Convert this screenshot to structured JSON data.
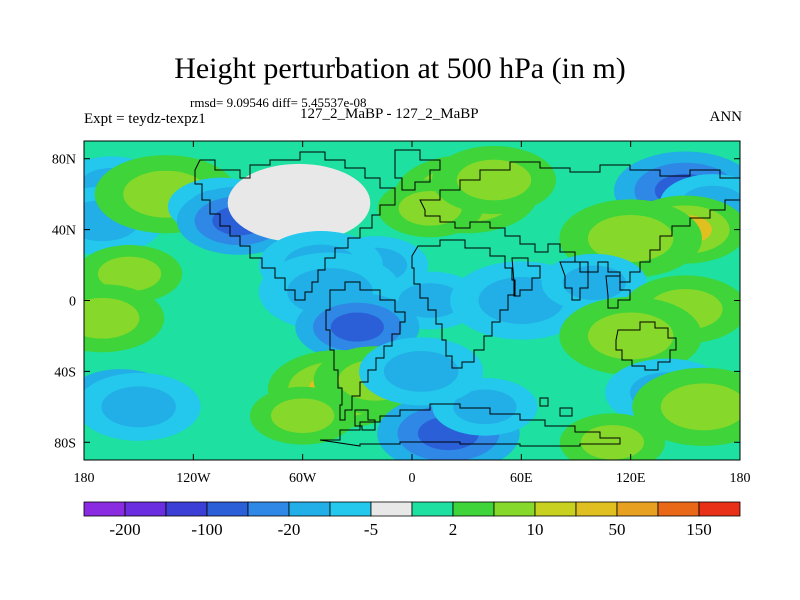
{
  "chart_data": {
    "type": "heatmap",
    "title": "Height perturbation at 500 hPa (in m)",
    "stats_text": "rmsd= 9.09546 diff= 5.45537e-08",
    "left_label": "Expt = teydz-texpz1",
    "center_label": "127_2_MaBP - 127_2_MaBP",
    "right_label": "ANN",
    "x_range": [
      -180,
      180
    ],
    "y_range": [
      -90,
      90
    ],
    "x_ticks": [
      {
        "value": -180,
        "label": "180"
      },
      {
        "value": -120,
        "label": "120W"
      },
      {
        "value": -60,
        "label": "60W"
      },
      {
        "value": 0,
        "label": "0"
      },
      {
        "value": 60,
        "label": "60E"
      },
      {
        "value": 120,
        "label": "120E"
      },
      {
        "value": 180,
        "label": "180"
      }
    ],
    "y_ticks": [
      {
        "value": 80,
        "label": "80N"
      },
      {
        "value": 40,
        "label": "40N"
      },
      {
        "value": 0,
        "label": "0"
      },
      {
        "value": -40,
        "label": "40S"
      },
      {
        "value": -80,
        "label": "80S"
      }
    ],
    "colorbar": {
      "colors": [
        "#8a2be2",
        "#6a2de0",
        "#3c3fd6",
        "#2b5fd8",
        "#2f87e6",
        "#22aee6",
        "#23c8ec",
        "#e8e8e8",
        "#1ee0a0",
        "#3ed43a",
        "#86d82a",
        "#c8d020",
        "#e0c020",
        "#e8a020",
        "#e86818",
        "#e83018"
      ],
      "labels": [
        {
          "boundary": 1,
          "text": "-200"
        },
        {
          "boundary": 3,
          "text": "-100"
        },
        {
          "boundary": 5,
          "text": "-20"
        },
        {
          "boundary": 7,
          "text": "-5"
        },
        {
          "boundary": 9,
          "text": "2"
        },
        {
          "boundary": 11,
          "text": "10"
        },
        {
          "boundary": 13,
          "text": "50"
        },
        {
          "boundary": 15,
          "text": "150"
        }
      ]
    },
    "anomaly_centers": [
      {
        "lon": -165,
        "lat": 65,
        "level": -1
      },
      {
        "lon": -170,
        "lat": 45,
        "level": -1
      },
      {
        "lon": -135,
        "lat": 60,
        "level": 1
      },
      {
        "lon": -105,
        "lat": 53,
        "level": -1
      },
      {
        "lon": -95,
        "lat": 45,
        "level": -2
      },
      {
        "lon": -62,
        "lat": 55,
        "level": 0
      },
      {
        "lon": -20,
        "lat": 20,
        "level": -1
      },
      {
        "lon": -50,
        "lat": 20,
        "level": -1
      },
      {
        "lon": 30,
        "lat": 60,
        "level": 2
      },
      {
        "lon": 10,
        "lat": 52,
        "level": 1
      },
      {
        "lon": 45,
        "lat": 68,
        "level": 1
      },
      {
        "lon": 150,
        "lat": 62,
        "level": -2
      },
      {
        "lon": 165,
        "lat": 55,
        "level": -1
      },
      {
        "lon": 150,
        "lat": 40,
        "level": 2
      },
      {
        "lon": 120,
        "lat": 35,
        "level": 1
      },
      {
        "lon": -155,
        "lat": 15,
        "level": 1
      },
      {
        "lon": -170,
        "lat": -10,
        "level": 1
      },
      {
        "lon": -45,
        "lat": 5,
        "level": -1
      },
      {
        "lon": 10,
        "lat": 0,
        "level": -1
      },
      {
        "lon": -30,
        "lat": -15,
        "level": -2
      },
      {
        "lon": 60,
        "lat": 0,
        "level": -1
      },
      {
        "lon": 100,
        "lat": 10,
        "level": -1
      },
      {
        "lon": 150,
        "lat": -5,
        "level": 1
      },
      {
        "lon": 120,
        "lat": -20,
        "level": 1
      },
      {
        "lon": -160,
        "lat": -55,
        "level": -2
      },
      {
        "lon": -150,
        "lat": -60,
        "level": -1
      },
      {
        "lon": -40,
        "lat": -50,
        "level": 2
      },
      {
        "lon": -60,
        "lat": -65,
        "level": 1
      },
      {
        "lon": -20,
        "lat": -45,
        "level": 1
      },
      {
        "lon": 20,
        "lat": -75,
        "level": -2
      },
      {
        "lon": 40,
        "lat": -60,
        "level": -1
      },
      {
        "lon": 140,
        "lat": -52,
        "level": -1
      },
      {
        "lon": 160,
        "lat": -60,
        "level": 1
      },
      {
        "lon": 110,
        "lat": -80,
        "level": 1
      },
      {
        "lon": 5,
        "lat": -40,
        "level": -1
      }
    ]
  }
}
